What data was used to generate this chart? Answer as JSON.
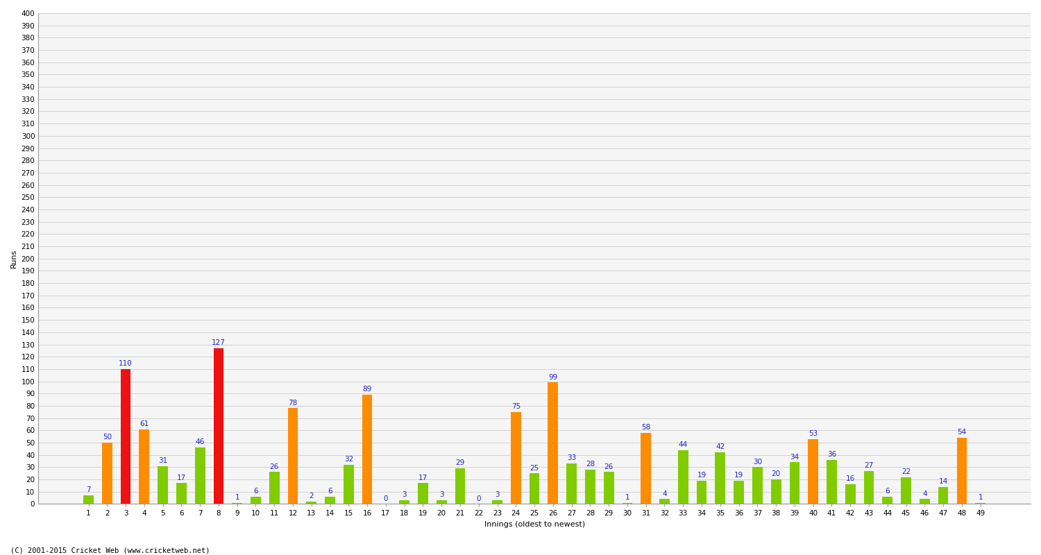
{
  "xlabel": "Innings (oldest to newest)",
  "ylabel": "Runs",
  "innings_labels": [
    "1",
    "2",
    "3",
    "4",
    "5",
    "6",
    "7",
    "8",
    "9",
    "10",
    "11",
    "12",
    "13",
    "14",
    "15",
    "16",
    "17",
    "18",
    "19",
    "20",
    "21",
    "22",
    "23",
    "24",
    "25",
    "26",
    "27",
    "28",
    "29",
    "30",
    "31",
    "32",
    "33",
    "34",
    "35",
    "36",
    "37",
    "38",
    "39",
    "40",
    "41",
    "42",
    "43",
    "44",
    "45",
    "46",
    "47",
    "48",
    "49"
  ],
  "scores": [
    7,
    50,
    110,
    61,
    31,
    17,
    46,
    127,
    1,
    6,
    26,
    78,
    2,
    6,
    32,
    89,
    0,
    3,
    17,
    3,
    29,
    0,
    3,
    75,
    25,
    99,
    33,
    28,
    26,
    1,
    58,
    4,
    44,
    19,
    42,
    19,
    30,
    20,
    34,
    53,
    36,
    16,
    27,
    6,
    22,
    4,
    14,
    54,
    1
  ],
  "ylim_max": 400,
  "ytick_step": 10,
  "color_normal": "#80cc00",
  "color_fifty": "#ff8c00",
  "color_hundred": "#ee1111",
  "plot_bg_color": "#f5f5f5",
  "fig_bg_color": "#ffffff",
  "grid_color": "#cccccc",
  "annotation_color": "#2222cc",
  "annotation_fontsize": 7.5,
  "ylabel_fontsize": 8,
  "xlabel_fontsize": 8,
  "tick_fontsize": 7.5,
  "bar_width": 0.55,
  "footer": "(C) 2001-2015 Cricket Web (www.cricketweb.net)"
}
